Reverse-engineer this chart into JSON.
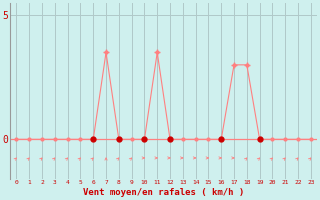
{
  "x": [
    0,
    1,
    2,
    3,
    4,
    5,
    6,
    7,
    8,
    9,
    10,
    11,
    12,
    13,
    14,
    15,
    16,
    17,
    18,
    19,
    20,
    21,
    22,
    23
  ],
  "y_gust": [
    0,
    0,
    0,
    0,
    0,
    0,
    0,
    3.5,
    0,
    0,
    0,
    3.5,
    0,
    0,
    0,
    0,
    0,
    3.0,
    3.0,
    0,
    0,
    0,
    0,
    0
  ],
  "xlabel": "Vent moyen/en rafales ( km/h )",
  "ylim": [
    0,
    5
  ],
  "xlim": [
    -0.5,
    23.5
  ],
  "yticks": [
    0,
    5
  ],
  "xticks": [
    0,
    1,
    2,
    3,
    4,
    5,
    6,
    7,
    8,
    9,
    10,
    11,
    12,
    13,
    14,
    15,
    16,
    17,
    18,
    19,
    20,
    21,
    22,
    23
  ],
  "bg_color": "#cff0ee",
  "line_color": "#ff8080",
  "dark_marker_color": "#cc0000",
  "grid_color": "#b0c8c8",
  "text_color": "#cc0000",
  "wind_arrows_deg": [
    225,
    225,
    225,
    225,
    225,
    225,
    225,
    180,
    225,
    225,
    270,
    270,
    270,
    270,
    270,
    270,
    270,
    270,
    225,
    225,
    225,
    225,
    225,
    225
  ]
}
